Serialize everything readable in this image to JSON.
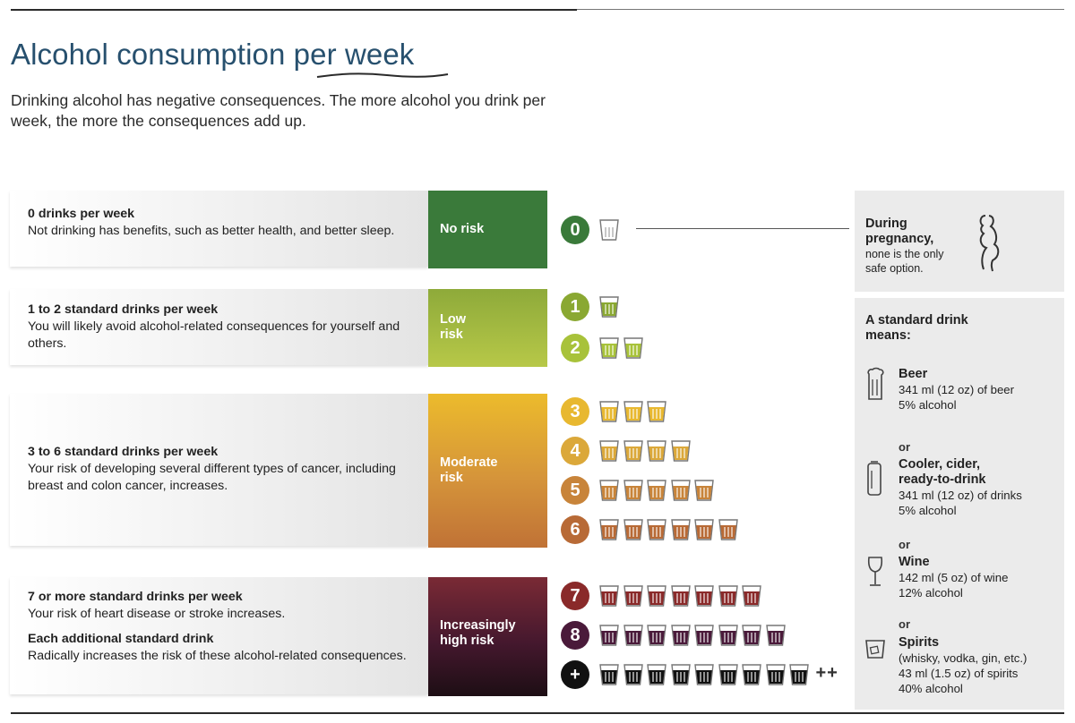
{
  "header": {
    "title": "Alcohol consumption per week",
    "subtitle": "Drinking alcohol has negative consequences. The more alcohol you drink per week, the more the consequences add up."
  },
  "levels": [
    {
      "heading": "0 drinks per week",
      "body": "Not drinking has benefits, such as better health, and better sleep.",
      "risk": "No risk",
      "color": "#3a7a3a"
    },
    {
      "heading": "1 to 2 standard drinks per week",
      "body": "You will likely avoid alcohol-related consequences for yourself and others.",
      "risk_line1": "Low",
      "risk_line2": "risk",
      "color": "#9cb43a"
    },
    {
      "heading": "3 to 6 standard drinks per week",
      "body": "Your risk of developing several different types of cancer, including breast and colon cancer, increases.",
      "risk_line1": "Moderate",
      "risk_line2": "risk",
      "color": "#d89a30"
    },
    {
      "heading": "7 or more standard drinks per week",
      "body": "Your risk of heart disease or stroke increases.",
      "heading2": "Each additional standard drink",
      "body2": "Radically increases the risk of these alcohol-related consequences.",
      "risk_line1": "Increasingly",
      "risk_line2": "high risk",
      "color": "#4a1a2e"
    }
  ],
  "drink_rows": [
    {
      "label": "0",
      "count": 1,
      "color": "#3a7a3a",
      "fill": "#ffffff"
    },
    {
      "label": "1",
      "count": 1,
      "color": "#8aa832",
      "fill": "#8aa832"
    },
    {
      "label": "2",
      "count": 2,
      "color": "#a8c23a",
      "fill": "#a8c23a"
    },
    {
      "label": "3",
      "count": 3,
      "color": "#e8b830",
      "fill": "#e8b830"
    },
    {
      "label": "4",
      "count": 4,
      "color": "#dba83a",
      "fill": "#dba83a"
    },
    {
      "label": "5",
      "count": 5,
      "color": "#c8843a",
      "fill": "#c8843a"
    },
    {
      "label": "6",
      "count": 6,
      "color": "#b86a36",
      "fill": "#b86a36"
    },
    {
      "label": "7",
      "count": 7,
      "color": "#8a2a2a",
      "fill": "#8a2a2a"
    },
    {
      "label": "8",
      "count": 8,
      "color": "#4a1a3a",
      "fill": "#4a1a3a"
    },
    {
      "label": "+",
      "count": 9,
      "color": "#111111",
      "fill": "#111111",
      "suffix": "++"
    }
  ],
  "pregnancy": {
    "heading1": "During",
    "heading2": "pregnancy,",
    "body": "none is the only safe option.",
    "icon": "pregnant-woman-icon"
  },
  "standard_drink": {
    "heading": "A standard drink means:",
    "or_label": "or",
    "items": [
      {
        "name": "Beer",
        "line1": "341 ml (12 oz) of beer",
        "line2": "5% alcohol",
        "icon": "beer-glass-icon"
      },
      {
        "name": "Cooler, cider, ready-to-drink",
        "line1": "341 ml (12 oz) of drinks",
        "line2": "5% alcohol",
        "icon": "can-icon"
      },
      {
        "name": "Wine",
        "line1": "142 ml (5 oz) of wine",
        "line2": "12% alcohol",
        "icon": "wine-glass-icon"
      },
      {
        "name": "Spirits",
        "line1": "(whisky, vodka, gin, etc.)",
        "line2": "43 ml (1.5 oz) of spirits",
        "line3": "40% alcohol",
        "icon": "spirits-glass-icon"
      }
    ]
  }
}
